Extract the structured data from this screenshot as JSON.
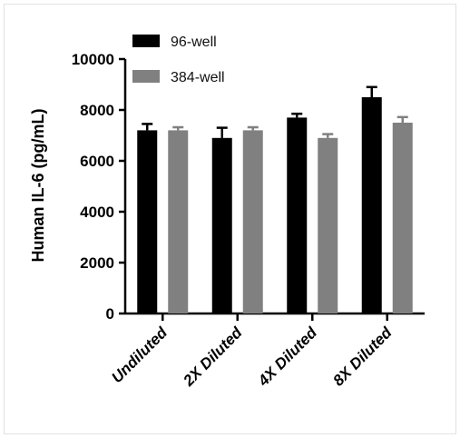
{
  "chart_data": {
    "type": "bar",
    "title": "",
    "xlabel": "",
    "ylabel": "Human IL-6 (pg/mL)",
    "ylim": [
      0,
      10000
    ],
    "yticks": [
      0,
      2000,
      4000,
      6000,
      8000,
      10000
    ],
    "ytick_labels": [
      "0",
      "2000",
      "4000",
      "6000",
      "8000",
      "10000"
    ],
    "categories": [
      "Undiluted",
      "2X Diluted",
      "4X Diluted",
      "8X Diluted"
    ],
    "legend_position": "top-left",
    "grid": false,
    "series": [
      {
        "name": "96-well",
        "color": "#000000",
        "values": [
          7200,
          6900,
          7700,
          8500
        ],
        "errors": [
          250,
          400,
          150,
          400
        ]
      },
      {
        "name": "384-well",
        "color": "#808080",
        "values": [
          7200,
          7200,
          6900,
          7500
        ],
        "errors": [
          120,
          120,
          150,
          220
        ]
      }
    ]
  }
}
